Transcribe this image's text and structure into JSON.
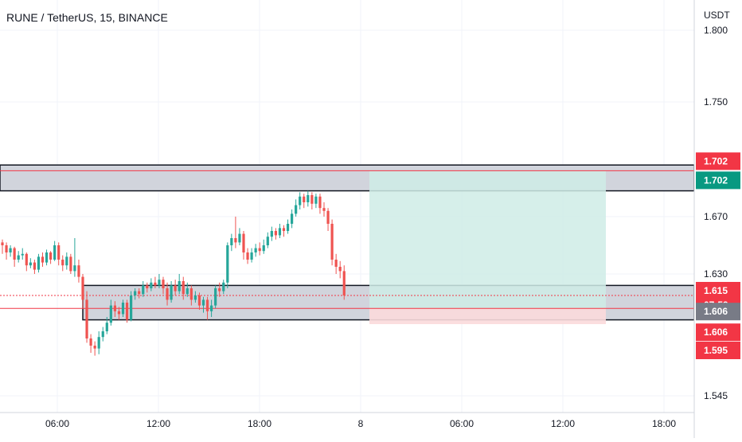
{
  "header": {
    "title": "RUNE / TetherUS, 15, BINANCE"
  },
  "chart_data": {
    "type": "candlestick",
    "symbol": "RUNE / TetherUS",
    "interval": "15",
    "exchange": "BINANCE",
    "currency_label": "USDT",
    "y_ticks": [
      "1.800",
      "1.750",
      "1.670",
      "1.630",
      "1.545"
    ],
    "x_ticks": [
      "06:00",
      "12:00",
      "18:00",
      "8",
      "06:00",
      "12:00",
      "18:00"
    ],
    "colors": {
      "up": "#26a69a",
      "down": "#ef5350",
      "zone_fill": "#d1d4dc",
      "target_fill": "#cfece6",
      "stop_fill": "#fbdadb",
      "marker": "#f23645"
    },
    "zones": [
      {
        "name": "resistance-zone",
        "top": 1.706,
        "bottom": 1.688,
        "line": 1.702
      },
      {
        "name": "support-zone",
        "top": 1.622,
        "bottom": 1.598,
        "line": 1.606
      }
    ],
    "position": {
      "entry": 1.606,
      "target": 1.702,
      "stop": 1.595
    },
    "price_labels": [
      {
        "name": "label-1702-alert",
        "text": "1.702",
        "price": 1.702,
        "color": "#f23645",
        "offset": -12
      },
      {
        "name": "label-1702-line",
        "text": "1.702",
        "price": 1.702,
        "color": "#089981",
        "offset": 12
      },
      {
        "name": "label-1615-last",
        "text": "1.615",
        "price": 1.615,
        "color": "#f23645",
        "offset": -6
      },
      {
        "name": "label-countdown",
        "text": "07:59",
        "price": 1.615,
        "color": "#f23645",
        "offset": 12
      },
      {
        "name": "label-1606-entry",
        "text": "1.606",
        "price": 1.606,
        "color": "#787b86",
        "offset": 4
      },
      {
        "name": "label-1606-alert",
        "text": "1.606",
        "price": 1.606,
        "color": "#f23645",
        "offset": 30
      },
      {
        "name": "label-1595-stop",
        "text": "1.595",
        "price": 1.595,
        "color": "#f23645",
        "offset": 33
      }
    ],
    "candles": [
      [
        1.652,
        1.65,
        1.654,
        1.644
      ],
      [
        1.65,
        1.645,
        1.652,
        1.64
      ],
      [
        1.645,
        1.648,
        1.65,
        1.642
      ],
      [
        1.648,
        1.64,
        1.649,
        1.635
      ],
      [
        1.64,
        1.643,
        1.646,
        1.638
      ],
      [
        1.643,
        1.644,
        1.648,
        1.64
      ],
      [
        1.644,
        1.636,
        1.645,
        1.632
      ],
      [
        1.636,
        1.638,
        1.641,
        1.634
      ],
      [
        1.638,
        1.633,
        1.64,
        1.63
      ],
      [
        1.633,
        1.642,
        1.644,
        1.631
      ],
      [
        1.642,
        1.638,
        1.645,
        1.635
      ],
      [
        1.638,
        1.645,
        1.647,
        1.636
      ],
      [
        1.645,
        1.64,
        1.646,
        1.637
      ],
      [
        1.64,
        1.65,
        1.653,
        1.639
      ],
      [
        1.65,
        1.64,
        1.652,
        1.636
      ],
      [
        1.64,
        1.636,
        1.643,
        1.632
      ],
      [
        1.636,
        1.642,
        1.645,
        1.633
      ],
      [
        1.642,
        1.632,
        1.644,
        1.63
      ],
      [
        1.632,
        1.636,
        1.655,
        1.628
      ],
      [
        1.636,
        1.628,
        1.64,
        1.624
      ],
      [
        1.628,
        1.612,
        1.63,
        1.606
      ],
      [
        1.612,
        1.585,
        1.618,
        1.582
      ],
      [
        1.585,
        1.58,
        1.588,
        1.575
      ],
      [
        1.58,
        1.578,
        1.583,
        1.573
      ],
      [
        1.578,
        1.586,
        1.59,
        1.574
      ],
      [
        1.586,
        1.59,
        1.593,
        1.583
      ],
      [
        1.59,
        1.596,
        1.6,
        1.588
      ],
      [
        1.596,
        1.608,
        1.612,
        1.594
      ],
      [
        1.608,
        1.604,
        1.611,
        1.6
      ],
      [
        1.604,
        1.602,
        1.607,
        1.598
      ],
      [
        1.602,
        1.61,
        1.612,
        1.6
      ],
      [
        1.61,
        1.598,
        1.612,
        1.596
      ],
      [
        1.598,
        1.615,
        1.618,
        1.597
      ],
      [
        1.615,
        1.618,
        1.62,
        1.612
      ],
      [
        1.618,
        1.616,
        1.62,
        1.613
      ],
      [
        1.616,
        1.622,
        1.625,
        1.614
      ],
      [
        1.622,
        1.62,
        1.624,
        1.617
      ],
      [
        1.62,
        1.624,
        1.627,
        1.618
      ],
      [
        1.624,
        1.622,
        1.628,
        1.62
      ],
      [
        1.622,
        1.626,
        1.63,
        1.62
      ],
      [
        1.626,
        1.62,
        1.628,
        1.616
      ],
      [
        1.62,
        1.612,
        1.624,
        1.608
      ],
      [
        1.612,
        1.622,
        1.625,
        1.61
      ],
      [
        1.622,
        1.618,
        1.626,
        1.615
      ],
      [
        1.618,
        1.625,
        1.63,
        1.616
      ],
      [
        1.625,
        1.616,
        1.628,
        1.612
      ],
      [
        1.616,
        1.62,
        1.624,
        1.614
      ],
      [
        1.62,
        1.612,
        1.622,
        1.608
      ],
      [
        1.612,
        1.615,
        1.618,
        1.61
      ],
      [
        1.615,
        1.608,
        1.617,
        1.605
      ],
      [
        1.608,
        1.612,
        1.614,
        1.603
      ],
      [
        1.612,
        1.604,
        1.614,
        1.598
      ],
      [
        1.604,
        1.608,
        1.612,
        1.6
      ],
      [
        1.608,
        1.62,
        1.622,
        1.606
      ],
      [
        1.62,
        1.618,
        1.624,
        1.614
      ],
      [
        1.618,
        1.624,
        1.626,
        1.616
      ],
      [
        1.624,
        1.65,
        1.652,
        1.62
      ],
      [
        1.65,
        1.655,
        1.658,
        1.646
      ],
      [
        1.655,
        1.652,
        1.67,
        1.648
      ],
      [
        1.652,
        1.658,
        1.662,
        1.65
      ],
      [
        1.658,
        1.645,
        1.66,
        1.64
      ],
      [
        1.645,
        1.64,
        1.648,
        1.637
      ],
      [
        1.64,
        1.645,
        1.648,
        1.638
      ],
      [
        1.645,
        1.648,
        1.651,
        1.642
      ],
      [
        1.648,
        1.646,
        1.652,
        1.643
      ],
      [
        1.646,
        1.65,
        1.654,
        1.644
      ],
      [
        1.65,
        1.656,
        1.659,
        1.648
      ],
      [
        1.656,
        1.66,
        1.663,
        1.653
      ],
      [
        1.66,
        1.657,
        1.662,
        1.654
      ],
      [
        1.657,
        1.662,
        1.665,
        1.655
      ],
      [
        1.662,
        1.66,
        1.664,
        1.656
      ],
      [
        1.66,
        1.665,
        1.668,
        1.658
      ],
      [
        1.665,
        1.672,
        1.675,
        1.662
      ],
      [
        1.672,
        1.678,
        1.682,
        1.67
      ],
      [
        1.678,
        1.684,
        1.687,
        1.675
      ],
      [
        1.684,
        1.68,
        1.686,
        1.676
      ],
      [
        1.68,
        1.685,
        1.688,
        1.677
      ],
      [
        1.685,
        1.679,
        1.687,
        1.675
      ],
      [
        1.679,
        1.684,
        1.686,
        1.676
      ],
      [
        1.684,
        1.676,
        1.686,
        1.672
      ],
      [
        1.676,
        1.674,
        1.68,
        1.67
      ],
      [
        1.674,
        1.665,
        1.676,
        1.66
      ],
      [
        1.665,
        1.64,
        1.668,
        1.636
      ],
      [
        1.64,
        1.635,
        1.644,
        1.63
      ],
      [
        1.635,
        1.632,
        1.639,
        1.627
      ],
      [
        1.632,
        1.615,
        1.636,
        1.612
      ]
    ]
  }
}
